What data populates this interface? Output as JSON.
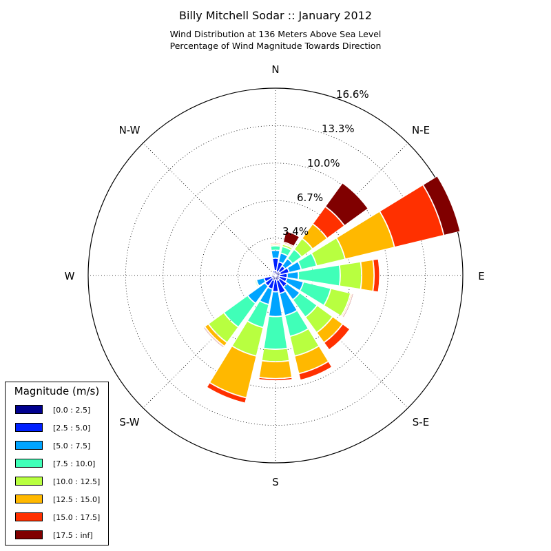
{
  "chart_data": {
    "type": "windrose",
    "title": "Billy Mitchell Sodar :: January 2012",
    "subtitle_lines": [
      "Wind Distribution at 136 Meters Above Sea Level",
      "Percentage of Wind Magnitude Towards Direction"
    ],
    "direction_labels": [
      "N",
      "N-E",
      "E",
      "S-E",
      "S",
      "S-W",
      "W",
      "N-W"
    ],
    "radial_ticks": [
      "3.4%",
      "6.7%",
      "10.0%",
      "13.3%",
      "16.6%"
    ],
    "rmax": 16.6,
    "legend_title": "Magnitude (m/s)",
    "legend_placement": "lower-left",
    "grid": true,
    "bins": [
      {
        "label": "[0.0 : 2.5]",
        "color": "#00008f"
      },
      {
        "label": "[2.5 : 5.0]",
        "color": "#0020ff"
      },
      {
        "label": "[5.0 : 7.5]",
        "color": "#00a4ff"
      },
      {
        "label": "[7.5 : 10.0]",
        "color": "#40ffb8"
      },
      {
        "label": "[10.0 : 12.5]",
        "color": "#b8ff40"
      },
      {
        "label": "[12.5 : 15.0]",
        "color": "#ffb800"
      },
      {
        "label": "[15.0 : 17.5]",
        "color": "#ff3000"
      },
      {
        "label": "[17.5 : inf]",
        "color": "#800000"
      }
    ],
    "sectors": [
      {
        "direction_deg": 0,
        "cumulative": [
          0.4,
          1.5,
          2.2,
          2.6,
          2.7,
          2.75,
          2.8,
          2.8
        ]
      },
      {
        "direction_deg": 22.5,
        "cumulative": [
          0.3,
          1.2,
          2.0,
          2.6,
          2.8,
          2.9,
          3.0,
          4.0
        ]
      },
      {
        "direction_deg": 45,
        "cumulative": [
          0.4,
          1.0,
          1.8,
          2.8,
          4.0,
          5.6,
          7.5,
          10.1
        ]
      },
      {
        "direction_deg": 67.5,
        "cumulative": [
          0.4,
          1.2,
          2.3,
          3.7,
          6.3,
          10.8,
          15.3,
          16.8
        ]
      },
      {
        "direction_deg": 90,
        "cumulative": [
          0.3,
          1.0,
          2.0,
          5.7,
          7.6,
          8.7,
          9.2,
          9.2
        ]
      },
      {
        "direction_deg": 112.5,
        "cumulative": [
          0.3,
          1.0,
          2.5,
          5.0,
          6.8,
          6.9,
          6.95,
          7.0
        ]
      },
      {
        "direction_deg": 135,
        "cumulative": [
          0.4,
          1.2,
          2.6,
          4.5,
          6.2,
          7.3,
          8.1,
          8.1
        ]
      },
      {
        "direction_deg": 157.5,
        "cumulative": [
          0.4,
          1.6,
          3.6,
          5.5,
          7.3,
          8.9,
          9.5,
          9.5
        ]
      },
      {
        "direction_deg": 180,
        "cumulative": [
          0.3,
          1.4,
          3.6,
          6.5,
          7.6,
          9.1,
          9.3,
          9.3
        ]
      },
      {
        "direction_deg": 202.5,
        "cumulative": [
          0.4,
          1.2,
          2.6,
          4.7,
          7.3,
          11.1,
          11.6,
          11.6
        ]
      },
      {
        "direction_deg": 225,
        "cumulative": [
          0.3,
          1.1,
          3.0,
          5.6,
          7.3,
          7.7,
          7.75,
          7.8
        ]
      },
      {
        "direction_deg": 247.5,
        "cumulative": [
          0.3,
          1.0,
          1.7,
          1.75,
          1.8,
          1.8,
          1.8,
          1.8
        ]
      },
      {
        "direction_deg": 270,
        "cumulative": [
          0.2,
          0.3,
          0.35,
          0.35,
          0.35,
          0.35,
          0.35,
          0.35
        ]
      },
      {
        "direction_deg": 292.5,
        "cumulative": [
          0.2,
          0.3,
          0.3,
          0.3,
          0.3,
          0.3,
          0.3,
          0.3
        ]
      },
      {
        "direction_deg": 315,
        "cumulative": [
          0.2,
          0.3,
          0.3,
          0.3,
          0.3,
          0.3,
          0.3,
          0.3
        ]
      },
      {
        "direction_deg": 337.5,
        "cumulative": [
          0.2,
          0.4,
          0.4,
          0.4,
          0.4,
          0.4,
          0.4,
          0.4
        ]
      }
    ]
  }
}
